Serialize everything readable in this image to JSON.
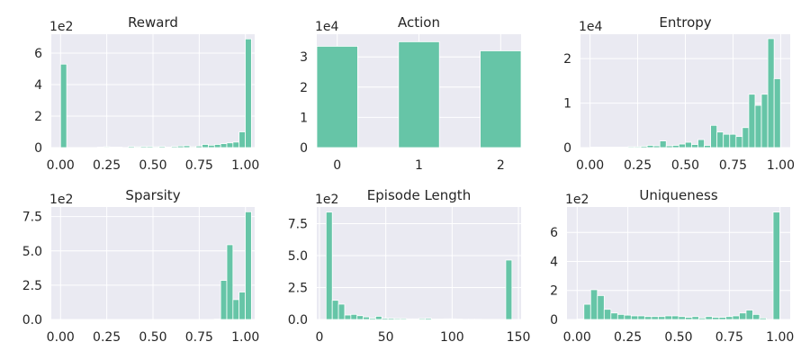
{
  "figure": {
    "background": "#ffffff",
    "axes_background": "#eaeaf2",
    "grid_color": "#ffffff",
    "bar_color": "#66c5a7"
  },
  "chart_data": [
    {
      "type": "bar",
      "title": "Reward",
      "multiplier": "1e2",
      "bin_start": 0.0,
      "bin_width": 0.0333,
      "values": [
        5.3,
        0,
        0,
        0,
        0,
        0,
        0.03,
        0.05,
        0.03,
        0.03,
        0,
        0.07,
        0.05,
        0.07,
        0.07,
        0.05,
        0.07,
        0.03,
        0.07,
        0.1,
        0.12,
        0.05,
        0.1,
        0.2,
        0.15,
        0.2,
        0.25,
        0.3,
        0.35,
        1.0,
        6.9
      ],
      "xlim": [
        -0.05,
        1.05
      ],
      "ylim": [
        0,
        7.2
      ],
      "xticks": [
        0,
        0.25,
        0.5,
        0.75,
        1.0
      ],
      "xtick_labels": [
        "0.00",
        "0.25",
        "0.50",
        "0.75",
        "1.00"
      ],
      "yticks": [
        0,
        2,
        4,
        6
      ],
      "ytick_labels": [
        "0",
        "2",
        "4",
        "6"
      ]
    },
    {
      "type": "bar",
      "title": "Action",
      "multiplier": "1e4",
      "categories": [
        "0",
        "1",
        "2"
      ],
      "x": [
        0,
        1,
        2
      ],
      "bar_width": 0.5,
      "values": [
        3.35,
        3.5,
        3.2
      ],
      "xlim": [
        -0.25,
        2.25
      ],
      "ylim": [
        0,
        3.75
      ],
      "xticks": [
        0,
        1,
        2
      ],
      "xtick_labels": [
        "0",
        "1",
        "2"
      ],
      "yticks": [
        0,
        1,
        2,
        3
      ],
      "ytick_labels": [
        "0",
        "1",
        "2",
        "3"
      ]
    },
    {
      "type": "bar",
      "title": "Entropy",
      "multiplier": "1e4",
      "bin_start": 0.0,
      "bin_width": 0.0333,
      "values": [
        0.01,
        0.01,
        0.01,
        0.01,
        0.01,
        0.01,
        0.02,
        0.02,
        0.03,
        0.05,
        0.04,
        0.15,
        0.04,
        0.05,
        0.08,
        0.12,
        0.07,
        0.18,
        0.05,
        0.5,
        0.35,
        0.3,
        0.3,
        0.25,
        0.45,
        1.2,
        0.95,
        1.2,
        2.45,
        1.55
      ],
      "xlim": [
        -0.05,
        1.05
      ],
      "ylim": [
        0,
        2.55
      ],
      "xticks": [
        0,
        0.25,
        0.5,
        0.75,
        1.0
      ],
      "xtick_labels": [
        "0.00",
        "0.25",
        "0.50",
        "0.75",
        "1.00"
      ],
      "yticks": [
        0,
        1,
        2
      ],
      "ytick_labels": [
        "0",
        "1",
        "2"
      ]
    },
    {
      "type": "bar",
      "title": "Sparsity",
      "multiplier": "1e2",
      "bin_start": 0.0,
      "bin_width": 0.0333,
      "values": [
        0,
        0,
        0,
        0,
        0,
        0,
        0,
        0,
        0,
        0,
        0,
        0,
        0,
        0,
        0,
        0,
        0,
        0,
        0,
        0,
        0,
        0,
        0,
        0,
        0,
        0.03,
        2.85,
        5.45,
        1.45,
        2.0,
        7.85
      ],
      "xlim": [
        -0.05,
        1.05
      ],
      "ylim": [
        0,
        8.2
      ],
      "xticks": [
        0,
        0.25,
        0.5,
        0.75,
        1.0
      ],
      "xtick_labels": [
        "0.00",
        "0.25",
        "0.50",
        "0.75",
        "1.00"
      ],
      "yticks": [
        0,
        2.5,
        5.0,
        7.5
      ],
      "ytick_labels": [
        "0.0",
        "2.5",
        "5.0",
        "7.5"
      ]
    },
    {
      "type": "bar",
      "title": "Episode Length",
      "multiplier": "1e2",
      "bin_start": 5,
      "bin_width": 4.67,
      "values": [
        8.4,
        1.5,
        1.2,
        0.35,
        0.4,
        0.3,
        0.2,
        0.1,
        0.25,
        0.1,
        0.1,
        0.08,
        0.08,
        0.05,
        0.05,
        0.08,
        0.1,
        0.03,
        0.03,
        0.05,
        0.05,
        0.03,
        0.02,
        0.02,
        0.02,
        0.01,
        0.01,
        0.01,
        0,
        4.65
      ],
      "xlim": [
        -2,
        152
      ],
      "ylim": [
        0,
        8.8
      ],
      "xticks": [
        0,
        50,
        100,
        150
      ],
      "xtick_labels": [
        "0",
        "50",
        "100",
        "150"
      ],
      "yticks": [
        0,
        2.5,
        5.0,
        7.5
      ],
      "ytick_labels": [
        "0.0",
        "2.5",
        "5.0",
        "7.5"
      ]
    },
    {
      "type": "bar",
      "title": "Uniqueness",
      "multiplier": "1e2",
      "bin_start": 0.0,
      "bin_width": 0.0333,
      "values": [
        0.03,
        1.05,
        2.05,
        1.65,
        0.7,
        0.45,
        0.35,
        0.3,
        0.25,
        0.25,
        0.2,
        0.2,
        0.2,
        0.25,
        0.25,
        0.2,
        0.15,
        0.2,
        0.1,
        0.2,
        0.15,
        0.15,
        0.2,
        0.25,
        0.45,
        0.65,
        0.35,
        0.1,
        0,
        7.4
      ],
      "xlim": [
        -0.05,
        1.05
      ],
      "ylim": [
        0,
        7.75
      ],
      "xticks": [
        0,
        0.25,
        0.5,
        0.75,
        1.0
      ],
      "xtick_labels": [
        "0.00",
        "0.25",
        "0.50",
        "0.75",
        "1.00"
      ],
      "yticks": [
        0,
        2,
        4,
        6
      ],
      "ytick_labels": [
        "0",
        "2",
        "4",
        "6"
      ]
    }
  ]
}
